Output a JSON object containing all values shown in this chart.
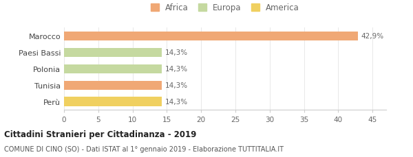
{
  "categories": [
    "Marocco",
    "Paesi Bassi",
    "Polonia",
    "Tunisia",
    "Perù"
  ],
  "values": [
    42.9,
    14.3,
    14.3,
    14.3,
    14.3
  ],
  "colors": [
    "#f0a875",
    "#c5d9a0",
    "#c5d9a0",
    "#f0a875",
    "#f0d060"
  ],
  "labels": [
    "42,9%",
    "14,3%",
    "14,3%",
    "14,3%",
    "14,3%"
  ],
  "legend_items": [
    {
      "label": "Africa",
      "color": "#f0a875"
    },
    {
      "label": "Europa",
      "color": "#c5d9a0"
    },
    {
      "label": "America",
      "color": "#f0d060"
    }
  ],
  "xlim": [
    0,
    47
  ],
  "xticks": [
    0,
    5,
    10,
    15,
    20,
    25,
    30,
    35,
    40,
    45
  ],
  "title": "Cittadini Stranieri per Cittadinanza - 2019",
  "subtitle": "COMUNE DI CINO (SO) - Dati ISTAT al 1° gennaio 2019 - Elaborazione TUTTITALIA.IT",
  "title_fontsize": 8.5,
  "subtitle_fontsize": 7.0,
  "bar_height": 0.55,
  "background_color": "#ffffff",
  "label_fontsize": 7.5,
  "ytick_fontsize": 8,
  "xtick_fontsize": 7.5
}
